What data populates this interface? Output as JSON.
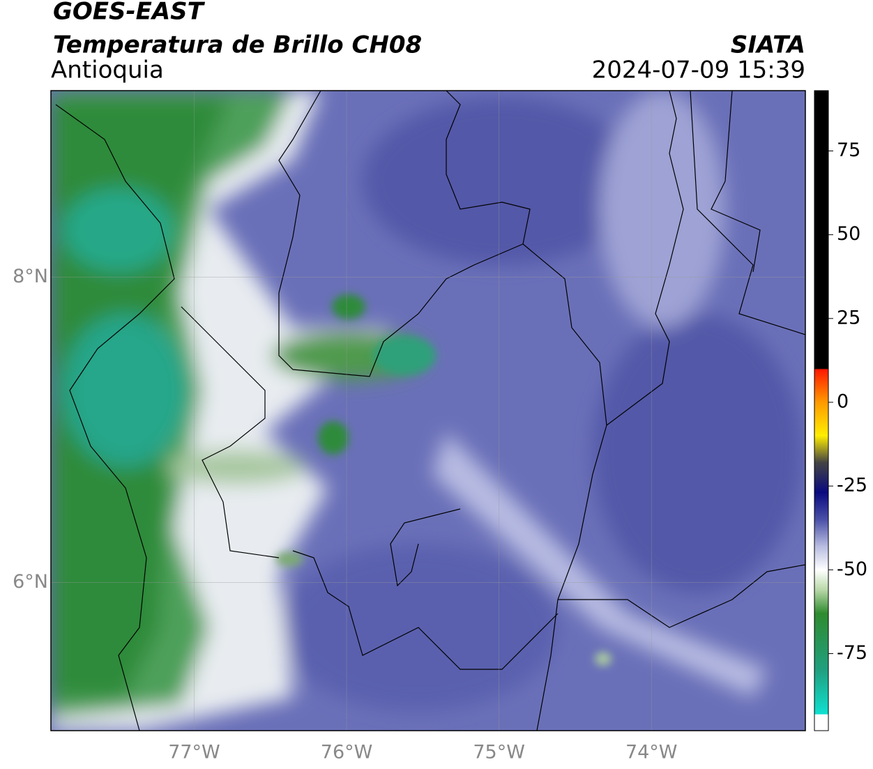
{
  "header": {
    "title": "GOES-EAST",
    "subtitle": "Temperatura de Brillo CH08",
    "region": "Antioquia",
    "source": "SIATA",
    "datetime": "2024-07-09 15:39"
  },
  "map": {
    "lonlim": [
      -77.94,
      -72.99
    ],
    "latlim": [
      5.03,
      9.22
    ],
    "xticks": [
      {
        "value": -77,
        "label": "77°W"
      },
      {
        "value": -76,
        "label": "76°W"
      },
      {
        "value": -75,
        "label": "75°W"
      },
      {
        "value": -74,
        "label": "74°W"
      }
    ],
    "yticks": [
      {
        "value": 6,
        "label": "6°N"
      },
      {
        "value": 8,
        "label": "8°N"
      }
    ],
    "grid": true
  },
  "colorbar": {
    "lim": [
      -98,
      93
    ],
    "ticks": [
      -75,
      -50,
      -25,
      0,
      25,
      50,
      75
    ]
  }
}
